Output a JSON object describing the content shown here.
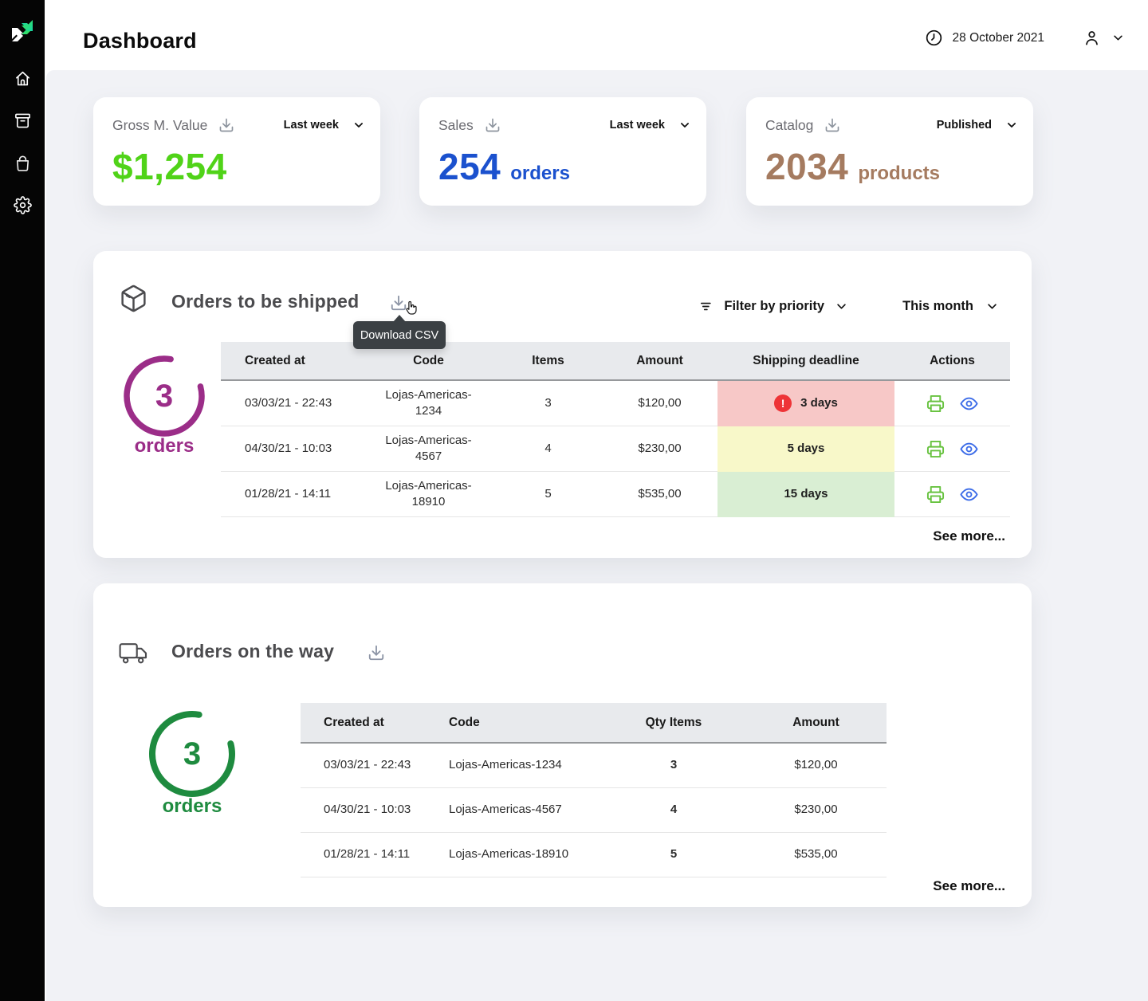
{
  "header": {
    "title": "Dashboard",
    "date": "28 October 2021"
  },
  "sidebar": {
    "items": [
      "home",
      "orders-archive",
      "products-bag",
      "settings"
    ]
  },
  "stats": [
    {
      "label": "Gross M. Value",
      "filter": "Last week",
      "value": "$1,254",
      "unit": "",
      "value_color": "#50d318"
    },
    {
      "label": "Sales",
      "filter": "Last week",
      "value": "254",
      "unit": "orders",
      "value_color": "#1b51ce"
    },
    {
      "label": "Catalog",
      "filter": "Published",
      "value": "2034",
      "unit": "products",
      "value_color": "#a57b60"
    }
  ],
  "shipped": {
    "title": "Orders to be shipped",
    "tooltip": "Download CSV",
    "filters": {
      "priority": "Filter by priority",
      "period": "This month"
    },
    "summary": {
      "count": "3",
      "unit": "orders",
      "color": "#9b2d88"
    },
    "columns": [
      "Created at",
      "Code",
      "Items",
      "Amount",
      "Shipping deadline",
      "Actions"
    ],
    "rows": [
      {
        "created_at": "03/03/21 - 22:43",
        "code": "Lojas-Americas-1234",
        "items": "3",
        "amount": "$120,00",
        "deadline": "3 days",
        "deadline_bg": "#f7c8c7",
        "urgent": true
      },
      {
        "created_at": "04/30/21 - 10:03",
        "code": "Lojas-Americas-4567",
        "items": "4",
        "amount": "$230,00",
        "deadline": "5 days",
        "deadline_bg": "#f8f8c9",
        "urgent": false
      },
      {
        "created_at": "01/28/21 - 14:11",
        "code": "Lojas-Americas-18910",
        "items": "5",
        "amount": "$535,00",
        "deadline": "15 days",
        "deadline_bg": "#d9eed3",
        "urgent": false
      }
    ],
    "see_more": "See more..."
  },
  "on_the_way": {
    "title": "Orders on the way",
    "summary": {
      "count": "3",
      "unit": "orders",
      "color": "#1e8b3f"
    },
    "columns": [
      "Created at",
      "Code",
      "Qty Items",
      "Amount"
    ],
    "rows": [
      {
        "created_at": "03/03/21 - 22:43",
        "code": "Lojas-Americas-1234",
        "qty": "3",
        "amount": "$120,00"
      },
      {
        "created_at": "04/30/21 - 10:03",
        "code": "Lojas-Americas-4567",
        "qty": "4",
        "amount": "$230,00"
      },
      {
        "created_at": "01/28/21 - 14:11",
        "code": "Lojas-Americas-18910",
        "qty": "5",
        "amount": "$535,00"
      }
    ],
    "see_more": "See more..."
  },
  "colors": {
    "urgent_badge": "#ee3437",
    "print_icon": "#67c23f",
    "view_icon": "#3c6ce8"
  }
}
